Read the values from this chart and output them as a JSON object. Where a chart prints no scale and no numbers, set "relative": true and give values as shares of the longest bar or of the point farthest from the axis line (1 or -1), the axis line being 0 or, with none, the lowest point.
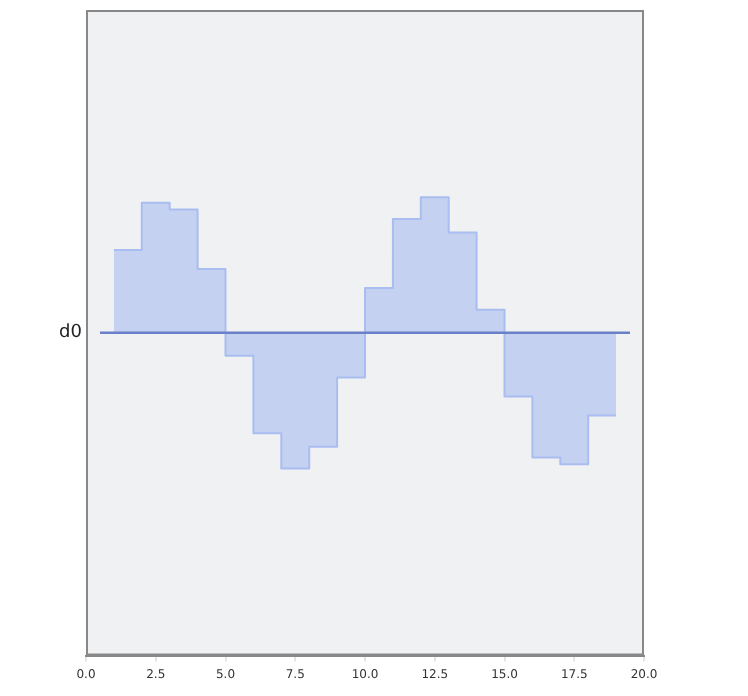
{
  "chart_data": {
    "type": "step",
    "relative": true,
    "x": [
      1,
      2,
      3,
      4,
      5,
      6,
      7,
      8,
      9,
      10,
      11,
      12,
      13,
      14,
      15,
      16,
      17,
      18,
      19
    ],
    "values": [
      0.61,
      0.96,
      0.91,
      0.47,
      -0.17,
      -0.74,
      -1.0,
      -0.84,
      -0.33,
      0.33,
      0.84,
      1.0,
      0.74,
      0.17,
      -0.47,
      -0.92,
      -0.97,
      -0.61,
      -0.61
    ],
    "color": "#a9bdf0",
    "xlim": [
      0,
      20
    ],
    "xticks": [
      {
        "value": 0,
        "label": "0.0"
      },
      {
        "value": 2.5,
        "label": "2.5"
      },
      {
        "value": 5,
        "label": "5.0"
      },
      {
        "value": 7.5,
        "label": "7.5"
      },
      {
        "value": 10,
        "label": "10.0"
      },
      {
        "value": 12.5,
        "label": "12.5"
      },
      {
        "value": 15,
        "label": "15.0"
      },
      {
        "value": 17.5,
        "label": "17.5"
      },
      {
        "value": 20,
        "label": "20.0"
      }
    ],
    "ref_lines": [
      {
        "axis": "y",
        "value": 0,
        "label": "d0",
        "color": "#6a80c8"
      }
    ],
    "grid": false,
    "legend": false
  }
}
